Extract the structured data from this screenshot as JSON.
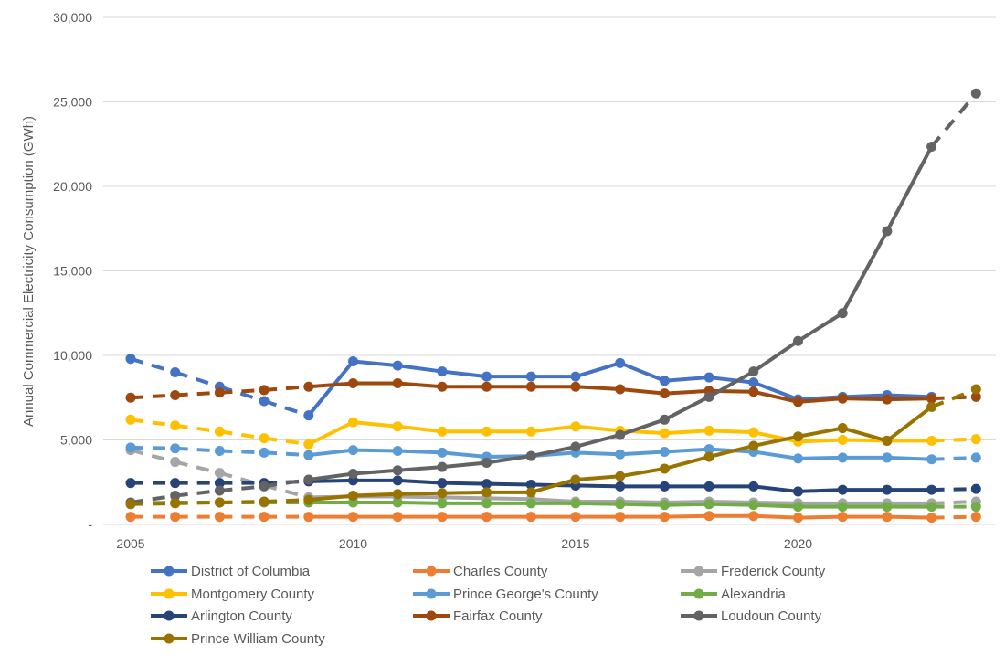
{
  "chart_data": {
    "type": "line",
    "title": "",
    "xlabel": "",
    "ylabel": "Annual Commercial Electricity Consumption (GWh)",
    "ylim": [
      0,
      30000
    ],
    "yticks": [
      "-",
      "5,000",
      "10,000",
      "15,000",
      "20,000",
      "25,000",
      "30,000"
    ],
    "ytick_values": [
      0,
      5000,
      10000,
      15000,
      20000,
      25000,
      30000
    ],
    "xticks": [
      "2005",
      "2010",
      "2015",
      "2020"
    ],
    "xtick_values": [
      2005,
      2010,
      2015,
      2020
    ],
    "grid": true,
    "legend": "bottom",
    "dashed_ranges": [
      [
        2005,
        2009
      ],
      [
        2023,
        2024
      ]
    ],
    "x": [
      2005,
      2006,
      2007,
      2008,
      2009,
      2010,
      2011,
      2012,
      2013,
      2014,
      2015,
      2016,
      2017,
      2018,
      2019,
      2020,
      2021,
      2022,
      2023,
      2024
    ],
    "series": [
      {
        "name": "District of Columbia",
        "color": "#4472C4",
        "values": [
          9800,
          9000,
          8150,
          7300,
          6450,
          9650,
          9400,
          9050,
          8750,
          8750,
          8750,
          9550,
          8500,
          8700,
          8400,
          7400,
          7550,
          7650,
          7550,
          null
        ]
      },
      {
        "name": "Charles County",
        "color": "#ED7D31",
        "values": [
          450,
          450,
          450,
          450,
          450,
          450,
          450,
          450,
          450,
          450,
          450,
          450,
          450,
          500,
          500,
          400,
          450,
          450,
          400,
          450
        ]
      },
      {
        "name": "Frederick County",
        "color": "#A5A5A5",
        "values": [
          4400,
          3700,
          3050,
          2300,
          1600,
          1650,
          1650,
          1600,
          1550,
          1500,
          1350,
          1350,
          1300,
          1350,
          1300,
          1250,
          1250,
          1250,
          1250,
          1350
        ]
      },
      {
        "name": "Montgomery County",
        "color": "#FFC000",
        "values": [
          6200,
          5850,
          5500,
          5100,
          4750,
          6050,
          5800,
          5500,
          5500,
          5500,
          5800,
          5550,
          5400,
          5550,
          5450,
          4900,
          5000,
          4950,
          4950,
          5050
        ]
      },
      {
        "name": "Prince George's County",
        "color": "#5B9BD5",
        "values": [
          4550,
          4500,
          4350,
          4250,
          4100,
          4400,
          4350,
          4250,
          4000,
          4050,
          4250,
          4150,
          4300,
          4450,
          4300,
          3900,
          3950,
          3950,
          3850,
          3950
        ]
      },
      {
        "name": "Alexandria",
        "color": "#70AD47",
        "values": [
          1250,
          1300,
          1300,
          1300,
          1300,
          1300,
          1300,
          1250,
          1250,
          1250,
          1250,
          1200,
          1150,
          1200,
          1150,
          1050,
          1050,
          1050,
          1050,
          1050
        ]
      },
      {
        "name": "Arlington County",
        "color": "#264478",
        "values": [
          2450,
          2450,
          2450,
          2450,
          2550,
          2600,
          2600,
          2450,
          2400,
          2350,
          2300,
          2250,
          2250,
          2250,
          2250,
          1950,
          2050,
          2050,
          2050,
          2100
        ]
      },
      {
        "name": "Fairfax County",
        "color": "#9E480E",
        "values": [
          7500,
          7650,
          7800,
          7950,
          8150,
          8350,
          8350,
          8150,
          8150,
          8150,
          8150,
          8000,
          7750,
          7900,
          7850,
          7250,
          7450,
          7400,
          7450,
          7550
        ]
      },
      {
        "name": "Loudoun County",
        "color": "#636363",
        "values": [
          1300,
          1700,
          2000,
          2250,
          2650,
          3000,
          3200,
          3400,
          3650,
          4050,
          4600,
          5300,
          6200,
          7550,
          9050,
          10850,
          12500,
          17350,
          22350,
          25500
        ]
      },
      {
        "name": "Prince William County",
        "color": "#997300",
        "values": [
          1200,
          1250,
          1300,
          1350,
          1450,
          1700,
          1800,
          1850,
          1900,
          1900,
          2650,
          2850,
          3300,
          4000,
          4650,
          5200,
          5700,
          4950,
          6950,
          8000
        ]
      }
    ]
  }
}
